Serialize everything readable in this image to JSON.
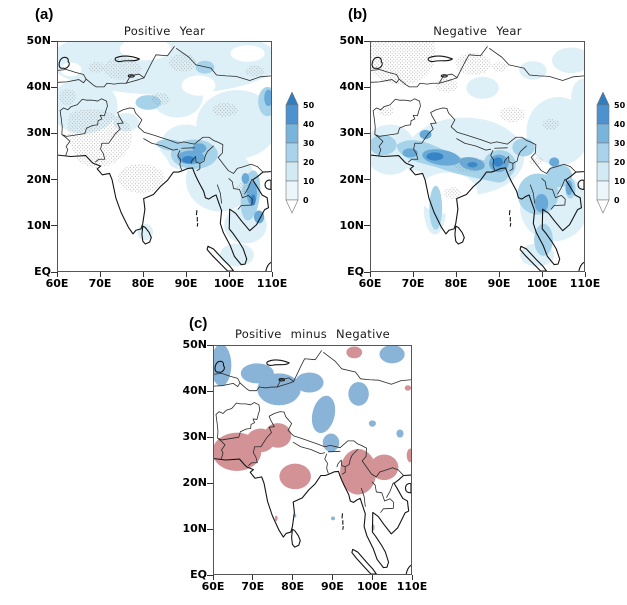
{
  "figure": {
    "type": "geographic composite maps",
    "region": {
      "lon_min": "60E",
      "lon_max": "110E",
      "lat_min": "EQ",
      "lat_max": "50N"
    },
    "panels": [
      {
        "label": "(a)",
        "title": "Positive Year",
        "lat_ticks": [
          "50N",
          "40N",
          "30N",
          "20N",
          "10N",
          "EQ"
        ],
        "lon_ticks": [
          "60E",
          "70E",
          "80E",
          "90E",
          "100E",
          "110E"
        ],
        "has_colorbar": true,
        "shading_summary": "Light blue over Central Asia and Tibet; strongest blue over northeast India, Bangladesh and the Vietnam coast; gray stippling over Pakistan and northwest/central India."
      },
      {
        "label": "(b)",
        "title": "Negative Year",
        "lat_ticks": [
          "50N",
          "40N",
          "30N",
          "20N",
          "10N",
          "EQ"
        ],
        "lon_ticks": [
          "60E",
          "70E",
          "80E",
          "90E",
          "100E",
          "110E"
        ],
        "has_colorbar": true,
        "shading_summary": "Strong blue band across central-north India extending into Indochina; stippling over Central Asia in the northwest."
      },
      {
        "label": "(c)",
        "title": "Positive minus Negative",
        "lat_ticks": [
          "50N",
          "40N",
          "30N",
          "20N",
          "10N",
          "EQ"
        ],
        "lon_ticks": [
          "60E",
          "70E",
          "80E",
          "90E",
          "100E",
          "110E"
        ],
        "has_colorbar": false,
        "shading_summary": "Blue (positive) patches between 30N-50N; pink (negative) patches between about 18N-33N."
      }
    ],
    "colorbar": {
      "tick_labels": [
        "50",
        "40",
        "30",
        "20",
        "10",
        "0"
      ],
      "levels": [
        0,
        10,
        20,
        30,
        40,
        50
      ],
      "orientation": "vertical",
      "arrow_top": true,
      "arrow_bottom": true
    },
    "colors": {
      "pale": "#ddeff7",
      "med": "#a6d2ea",
      "str": "#68a9d8",
      "core": "#3684c6",
      "diff_blue": "#8ab3d8",
      "diff_pink": "#d39295",
      "stipple": "#999999",
      "coast": "#141414",
      "border_line": "#2a2a2a",
      "frame": "#555555",
      "cb_over": "#2f7dc1",
      "cb_l4": "#4d92cf",
      "cb_l3": "#79b4dd",
      "cb_l2": "#a9d3ea",
      "cb_l1": "#d2eaf4",
      "cb_l0": "#eaf6f9",
      "cb_under": "#ffffff"
    }
  }
}
